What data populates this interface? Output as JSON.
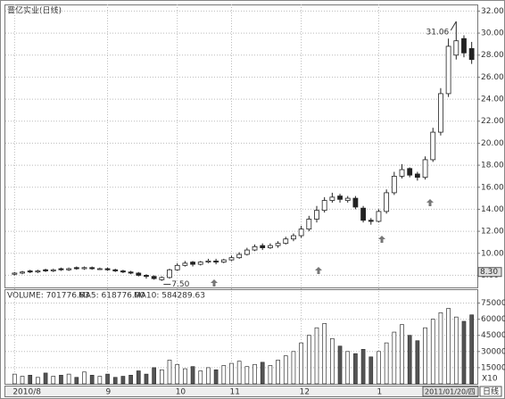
{
  "chart_data": {
    "type": "candlestick",
    "title": "晋亿实业(日线)",
    "categories": [
      "2010/8",
      null,
      null,
      null,
      null,
      null,
      null,
      null,
      null,
      null,
      null,
      null,
      "9",
      null,
      null,
      null,
      null,
      null,
      null,
      null,
      null,
      "10",
      null,
      null,
      null,
      null,
      null,
      null,
      "11",
      null,
      null,
      null,
      null,
      null,
      null,
      null,
      null,
      "12",
      null,
      null,
      null,
      null,
      null,
      null,
      null,
      null,
      null,
      "1",
      null,
      null,
      null,
      null,
      null,
      null,
      null,
      null,
      null,
      null,
      null,
      null
    ],
    "open": [
      8.1,
      8.2,
      8.4,
      8.3,
      8.5,
      8.4,
      8.6,
      8.5,
      8.7,
      8.6,
      8.7,
      8.6,
      8.6,
      8.5,
      8.4,
      8.3,
      8.2,
      8.0,
      7.9,
      7.6,
      7.8,
      8.5,
      8.9,
      9.2,
      9.0,
      9.2,
      9.3,
      9.2,
      9.4,
      9.6,
      9.9,
      10.3,
      10.7,
      10.5,
      10.7,
      10.9,
      11.3,
      11.6,
      12.2,
      13.1,
      13.9,
      14.8,
      15.2,
      14.8,
      15.0,
      14.1,
      13.0,
      12.9,
      13.8,
      15.5,
      17.0,
      17.7,
      17.2,
      16.9,
      18.5,
      21.0,
      24.5,
      28.0,
      29.5,
      28.6
    ],
    "close": [
      8.2,
      8.3,
      8.3,
      8.4,
      8.4,
      8.5,
      8.5,
      8.6,
      8.6,
      8.7,
      8.6,
      8.6,
      8.5,
      8.4,
      8.3,
      8.2,
      8.0,
      7.9,
      7.7,
      7.8,
      8.5,
      8.9,
      9.1,
      9.0,
      9.2,
      9.3,
      9.2,
      9.4,
      9.6,
      9.9,
      10.3,
      10.6,
      10.5,
      10.7,
      10.9,
      11.3,
      11.6,
      12.2,
      13.1,
      13.9,
      14.8,
      15.1,
      14.9,
      15.0,
      14.2,
      13.0,
      12.9,
      13.8,
      15.5,
      17.0,
      17.6,
      17.1,
      16.9,
      18.5,
      21.0,
      24.5,
      28.8,
      29.3,
      28.2,
      27.6
    ],
    "high": [
      8.3,
      8.4,
      8.5,
      8.5,
      8.6,
      8.6,
      8.7,
      8.7,
      8.8,
      8.8,
      8.8,
      8.7,
      8.7,
      8.6,
      8.5,
      8.4,
      8.3,
      8.1,
      8.0,
      7.9,
      8.6,
      9.1,
      9.3,
      9.3,
      9.3,
      9.5,
      9.5,
      9.5,
      9.8,
      10.1,
      10.5,
      10.8,
      10.9,
      10.9,
      11.1,
      11.5,
      11.8,
      12.5,
      13.4,
      14.3,
      15.1,
      15.5,
      15.4,
      15.2,
      15.2,
      14.3,
      13.2,
      14.0,
      15.8,
      17.4,
      18.1,
      17.8,
      17.4,
      18.8,
      21.4,
      25.0,
      29.5,
      31.06,
      29.8,
      29.2
    ],
    "low": [
      8.0,
      8.1,
      8.2,
      8.2,
      8.3,
      8.3,
      8.4,
      8.4,
      8.5,
      8.5,
      8.5,
      8.5,
      8.4,
      8.3,
      8.2,
      8.1,
      7.9,
      7.7,
      7.6,
      7.5,
      7.7,
      8.4,
      8.8,
      8.8,
      8.9,
      9.1,
      9.0,
      9.1,
      9.3,
      9.5,
      9.8,
      10.2,
      10.3,
      10.4,
      10.5,
      10.8,
      11.1,
      11.4,
      12.0,
      12.8,
      13.7,
      14.6,
      14.6,
      14.6,
      14.0,
      12.8,
      12.6,
      12.8,
      13.6,
      15.3,
      16.8,
      16.9,
      16.6,
      16.7,
      18.3,
      20.7,
      24.2,
      27.6,
      27.8,
      27.2
    ],
    "high_label": "31.06",
    "low_label": "7.50",
    "price_marker": {
      "value": 8.3,
      "label": "8.30"
    },
    "ylim": [
      6.9,
      32.6
    ],
    "yticks": [
      {
        "value": 8,
        "label": "8.00"
      },
      {
        "value": 10,
        "label": "10.00"
      },
      {
        "value": 12,
        "label": "12.00"
      },
      {
        "value": 14,
        "label": "14.00"
      },
      {
        "value": 16,
        "label": "16.00"
      },
      {
        "value": 18,
        "label": "18.00"
      },
      {
        "value": 20,
        "label": "20.00"
      },
      {
        "value": 22,
        "label": "22.00"
      },
      {
        "value": 24,
        "label": "24.00"
      },
      {
        "value": 26,
        "label": "26.00"
      },
      {
        "value": 28,
        "label": "28.00"
      },
      {
        "value": 30,
        "label": "30.00"
      },
      {
        "value": 32,
        "label": "32.00"
      }
    ],
    "volume": [
      9000,
      7000,
      8000,
      6000,
      10000,
      7000,
      8000,
      9000,
      6000,
      11000,
      8000,
      7000,
      9000,
      6000,
      7000,
      8000,
      12000,
      9000,
      15000,
      13000,
      22000,
      18000,
      14000,
      16000,
      12000,
      15000,
      13000,
      17000,
      19000,
      21000,
      16000,
      18000,
      20000,
      17000,
      22000,
      26000,
      30000,
      38000,
      45000,
      52000,
      56000,
      42000,
      35000,
      30000,
      28000,
      32000,
      25000,
      30000,
      38000,
      48000,
      55000,
      45000,
      40000,
      52000,
      60000,
      66000,
      70000,
      62000,
      58000,
      64000
    ],
    "volume_header": [
      "VOLUME: 701776.63",
      "MA5: 618776.00",
      "MA10: 584289.63"
    ],
    "volume_ylim": [
      0,
      87000
    ],
    "volume_yticks": [
      15000,
      30000,
      45000,
      60000,
      75000
    ],
    "volume_unit": "X10",
    "cursor_date": "2011/01/20/四",
    "period": "日线",
    "grid": true
  }
}
